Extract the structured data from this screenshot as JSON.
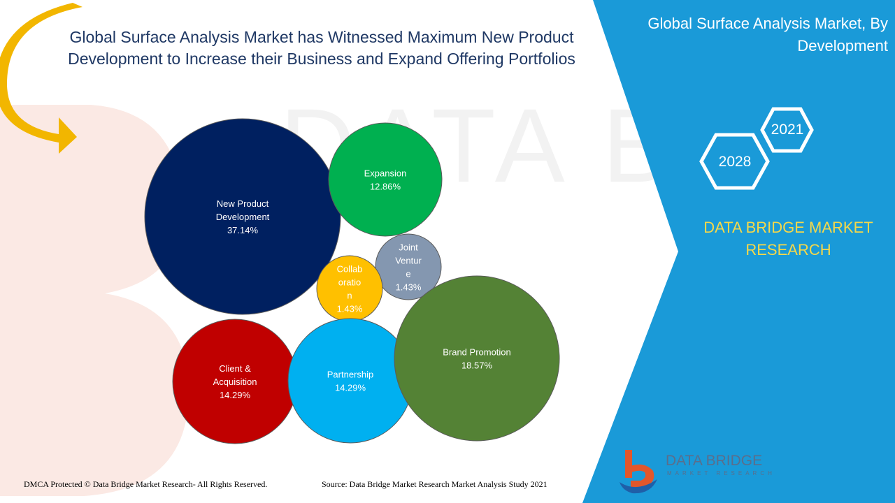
{
  "header": {
    "title": "Global Surface Analysis Market has Witnessed Maximum New Product Development to Increase their Business and Expand Offering Portfolios"
  },
  "side_panel": {
    "title": "Global Surface Analysis Market, By Development",
    "years": [
      "2021",
      "2028"
    ],
    "brand": "DATA BRIDGE MARKET RESEARCH",
    "logo_main": "DATA BRIDGE",
    "logo_sub": "MARKET RESEARCH"
  },
  "footer": {
    "copyright": "DMCA Protected © Data Bridge Market Research- All Rights Reserved.",
    "source": "Source: Data Bridge Market Research Market Analysis Study 2021"
  },
  "colors": {
    "panel_blue": "#1a9ad8",
    "title_navy": "#1f3864",
    "arrow_gold": "#f2b600",
    "brand_yellow": "#f5d84a"
  },
  "chart_data": {
    "type": "bubble",
    "series": [
      {
        "label_lines": [
          "New Product",
          "Development"
        ],
        "value": 37.14,
        "value_text": "37.14%",
        "color": "#002060"
      },
      {
        "label_lines": [
          "Expansion"
        ],
        "value": 12.86,
        "value_text": "12.86%",
        "color": "#00b050"
      },
      {
        "label_lines": [
          "Joint",
          "Ventur",
          "e"
        ],
        "value": 1.43,
        "value_text": "1.43%",
        "color": "#8497b0"
      },
      {
        "label_lines": [
          "Collab",
          "oratio",
          "n"
        ],
        "value": 1.43,
        "value_text": "1.43%",
        "color": "#ffc000"
      },
      {
        "label_lines": [
          "Brand Promotion"
        ],
        "value": 18.57,
        "value_text": "18.57%",
        "color": "#548235"
      },
      {
        "label_lines": [
          "Client &",
          "Acquisition"
        ],
        "value": 14.29,
        "value_text": "14.29%",
        "color": "#c00000"
      },
      {
        "label_lines": [
          "Partnership"
        ],
        "value": 14.29,
        "value_text": "14.29%",
        "color": "#00b0f0"
      }
    ]
  }
}
